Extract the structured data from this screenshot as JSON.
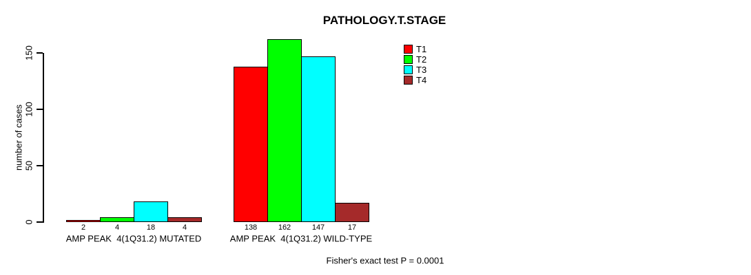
{
  "chart_data": {
    "type": "bar",
    "title": "PATHOLOGY.T.STAGE",
    "ylabel": "number of cases",
    "xlabel": "",
    "ylim": [
      0,
      150
    ],
    "yticks": [
      0,
      50,
      100,
      150
    ],
    "grid": false,
    "legend_position": "top-center-right",
    "categories": [
      "AMP PEAK  4(1Q31.2) MUTATED",
      "AMP PEAK  4(1Q31.2) WILD-TYPE"
    ],
    "series": [
      {
        "name": "T1",
        "color": "#ff0000",
        "values": [
          2,
          138
        ]
      },
      {
        "name": "T2",
        "color": "#00ff00",
        "values": [
          4,
          162
        ]
      },
      {
        "name": "T3",
        "color": "#00ffff",
        "values": [
          18,
          147
        ]
      },
      {
        "name": "T4",
        "color": "#a52a2a",
        "values": [
          4,
          17
        ]
      }
    ],
    "show_bar_values": true,
    "annotation": "Fisher's exact test P = 0.0001",
    "colors": {
      "background": "#ffffff",
      "axis": "#000000",
      "bar_border": "#000000",
      "text": "#000000"
    }
  }
}
